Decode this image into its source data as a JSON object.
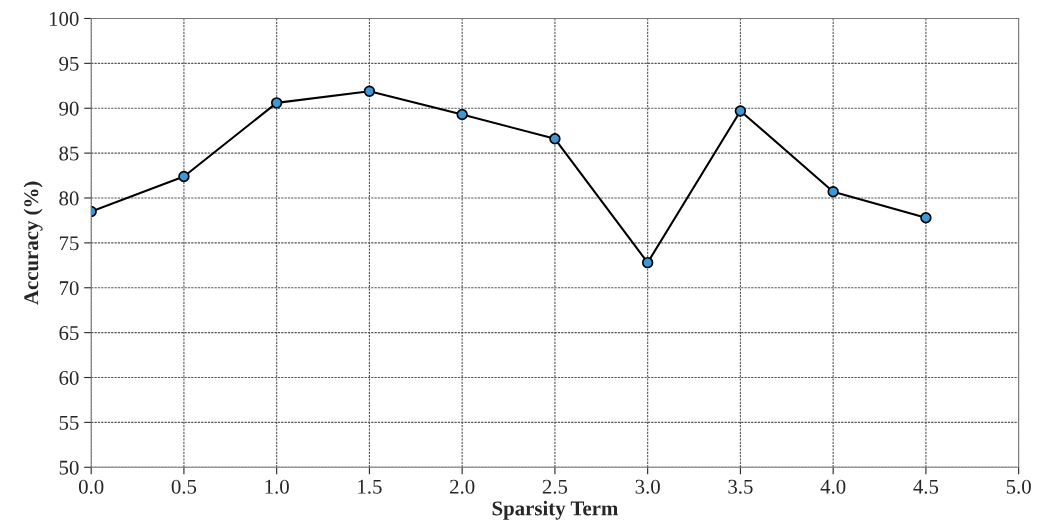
{
  "chart_data": {
    "type": "line",
    "xlabel": "Sparsity Term",
    "ylabel": "Accuracy (%)",
    "x": [
      0.0,
      0.5,
      1.0,
      1.5,
      2.0,
      2.5,
      3.0,
      3.5,
      4.0,
      4.5
    ],
    "series": [
      {
        "color": "#3a9ad9",
        "values": [
          78.5,
          82.4,
          90.6,
          91.9,
          89.3,
          86.6,
          72.8,
          89.7,
          80.7,
          77.8
        ]
      }
    ],
    "xlim": [
      0.0,
      5.0
    ],
    "xticks": [
      {
        "value": 0,
        "label": "0.0"
      },
      {
        "value": 0.5,
        "label": "0.5"
      },
      {
        "value": 1,
        "label": "1.0"
      },
      {
        "value": 1.5,
        "label": "1.5"
      },
      {
        "value": 2,
        "label": "2.0"
      },
      {
        "value": 2.5,
        "label": "2.5"
      },
      {
        "value": 3,
        "label": "3.0"
      },
      {
        "value": 3.5,
        "label": "3.5"
      },
      {
        "value": 4,
        "label": "4.0"
      },
      {
        "value": 4.5,
        "label": "4.5"
      },
      {
        "value": 5,
        "label": "5.0"
      }
    ],
    "ylim": [
      50,
      100
    ],
    "yticks": [
      50,
      55,
      60,
      65,
      70,
      75,
      80,
      85,
      90,
      95,
      100
    ],
    "grid": true,
    "marker": "circle",
    "line_style": "solid",
    "legend": false
  }
}
